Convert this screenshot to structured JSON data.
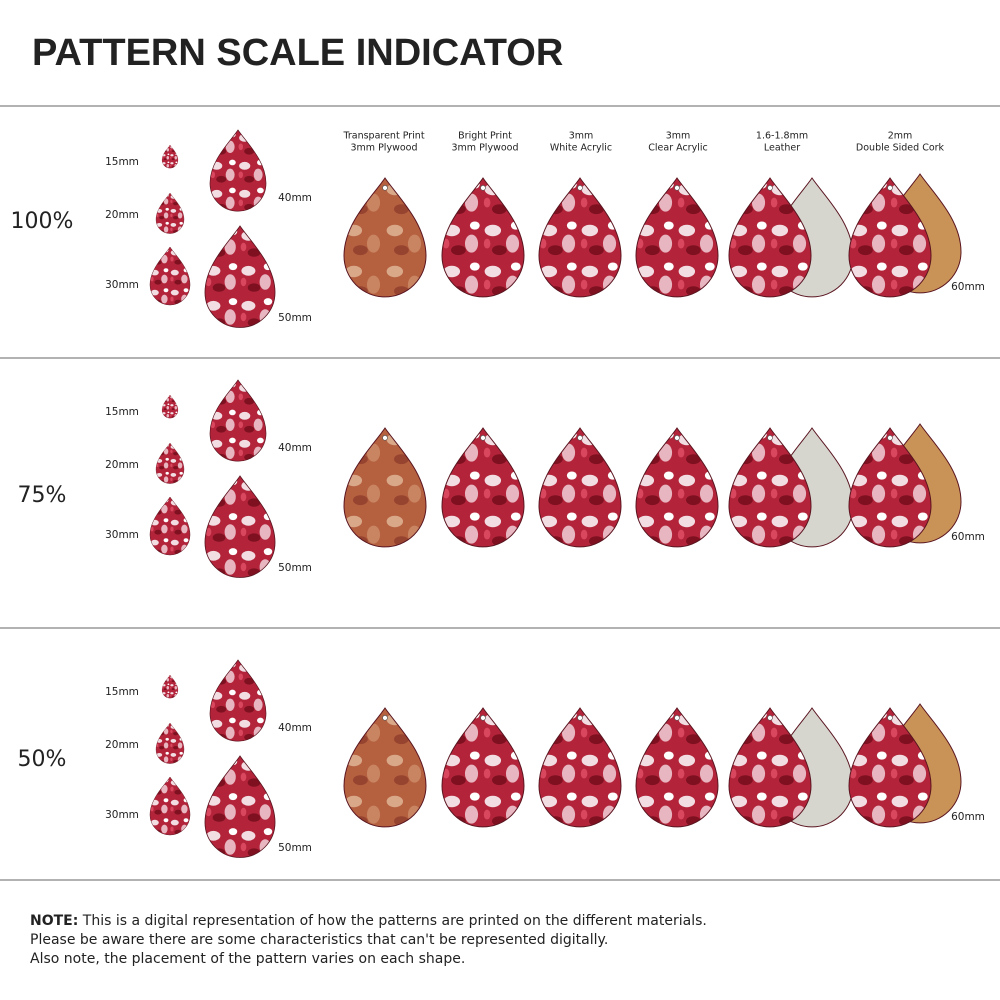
{
  "title": "PATTERN SCALE INDICATOR",
  "materials": [
    {
      "line1": "Transparent Print",
      "line2": "3mm Plywood"
    },
    {
      "line1": "Bright Print",
      "line2": "3mm Plywood"
    },
    {
      "line1": "3mm",
      "line2": "White Acrylic"
    },
    {
      "line1": "3mm",
      "line2": "Clear Acrylic"
    },
    {
      "line1": "1.6-1.8mm",
      "line2": "Leather"
    },
    {
      "line1": "2mm",
      "line2": "Double Sided Cork"
    }
  ],
  "rows": [
    {
      "scale": "100%",
      "sizes": [
        "15mm",
        "20mm",
        "30mm",
        "40mm",
        "50mm"
      ],
      "large_size": "60mm"
    },
    {
      "scale": "75%",
      "sizes": [
        "15mm",
        "20mm",
        "30mm",
        "40mm",
        "50mm"
      ],
      "large_size": "60mm"
    },
    {
      "scale": "50%",
      "sizes": [
        "15mm",
        "20mm",
        "30mm",
        "40mm",
        "50mm"
      ],
      "large_size": "60mm"
    }
  ],
  "note": {
    "label": "NOTE:",
    "lines": [
      "This is a digital representation of how the patterns are printed on the different materials.",
      "Please be aware there are some characteristics that can't be represented digitally.",
      "Also note, the placement of the pattern varies on each shape."
    ]
  }
}
